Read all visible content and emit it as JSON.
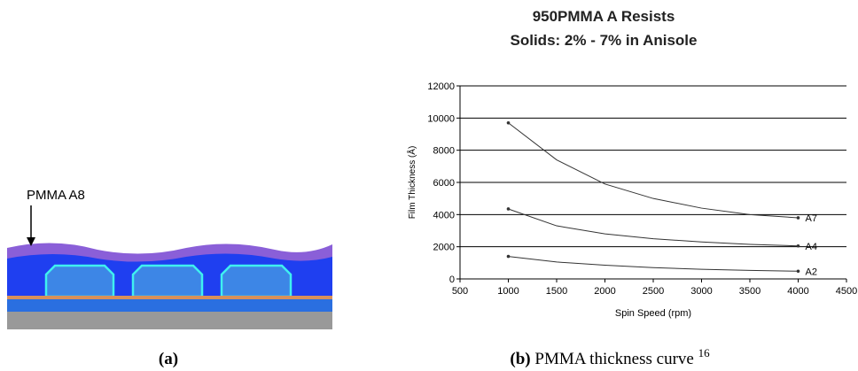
{
  "figure_a": {
    "label": "PMMA A8",
    "caption": "(a)"
  },
  "figure_b": {
    "caption_label": "(b)",
    "caption_text": "PMMA thickness curve",
    "caption_ref": "16"
  },
  "chart_data": {
    "type": "line",
    "title": "950PMMA A Resists",
    "subtitle": "Solids: 2% - 7% in Anisole",
    "x_label": "Spin Speed (rpm)",
    "y_label": "Film Thickness (Å)",
    "x": [
      1000,
      1500,
      2000,
      2500,
      3000,
      3500,
      4000
    ],
    "series": [
      {
        "name": "A7",
        "color": "#333333",
        "values": [
          9700,
          7400,
          5900,
          5000,
          4400,
          4000,
          3800
        ]
      },
      {
        "name": "A4",
        "color": "#333333",
        "values": [
          4350,
          3300,
          2800,
          2500,
          2300,
          2150,
          2050
        ]
      },
      {
        "name": "A2",
        "color": "#333333",
        "values": [
          1400,
          1050,
          850,
          700,
          600,
          530,
          480
        ]
      }
    ],
    "xlim": [
      500,
      4500
    ],
    "xticks": [
      500,
      1000,
      1500,
      2000,
      2500,
      3000,
      3500,
      4000,
      4500
    ],
    "ylim": [
      0,
      12000
    ],
    "yticks": [
      0,
      2000,
      4000,
      6000,
      8000,
      10000,
      12000
    ],
    "grid": true
  }
}
